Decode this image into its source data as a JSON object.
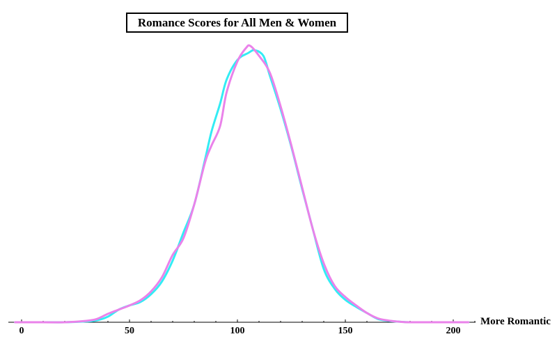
{
  "chart_data": {
    "type": "line",
    "title": "Romance Scores for All Men & Women",
    "xlabel": "More Romantic",
    "ylabel": "",
    "xlim": [
      -3,
      210
    ],
    "ylim": [
      0,
      1
    ],
    "xticks": [
      0,
      50,
      100,
      150,
      200
    ],
    "xtick_labels": [
      "0",
      "50",
      "100",
      "150",
      "200"
    ],
    "grid": false,
    "legend": "none",
    "series": [
      {
        "color": "#33ecf4",
        "x": [
          -3,
          0,
          10,
          20,
          30,
          35,
          40,
          45,
          50,
          55,
          60,
          65,
          70,
          75,
          80,
          85,
          88,
          92,
          95,
          100,
          105,
          108,
          112,
          115,
          120,
          125,
          130,
          135,
          140,
          145,
          150,
          155,
          160,
          165,
          170,
          175,
          180,
          190,
          200,
          207
        ],
        "y": [
          0.0,
          0.0,
          0.0,
          0.0,
          0.003,
          0.007,
          0.02,
          0.045,
          0.06,
          0.072,
          0.1,
          0.145,
          0.22,
          0.32,
          0.42,
          0.58,
          0.68,
          0.78,
          0.865,
          0.935,
          0.96,
          0.97,
          0.95,
          0.88,
          0.76,
          0.625,
          0.475,
          0.33,
          0.19,
          0.12,
          0.08,
          0.055,
          0.033,
          0.012,
          0.005,
          0.002,
          0.0,
          0.0,
          0.0,
          0.0
        ]
      },
      {
        "color": "#ea82ea",
        "x": [
          -3,
          0,
          10,
          20,
          30,
          35,
          40,
          45,
          50,
          55,
          60,
          65,
          70,
          75,
          80,
          85,
          88,
          92,
          95,
          100,
          104,
          106,
          110,
          115,
          120,
          125,
          130,
          135,
          140,
          145,
          150,
          155,
          160,
          165,
          170,
          175,
          180,
          190,
          200,
          207
        ],
        "y": [
          0.0,
          0.0,
          0.0,
          0.0,
          0.005,
          0.012,
          0.03,
          0.045,
          0.06,
          0.078,
          0.11,
          0.16,
          0.24,
          0.3,
          0.42,
          0.57,
          0.63,
          0.7,
          0.82,
          0.93,
          0.978,
          0.985,
          0.95,
          0.89,
          0.77,
          0.63,
          0.48,
          0.33,
          0.21,
          0.13,
          0.09,
          0.06,
          0.033,
          0.014,
          0.006,
          0.002,
          0.0,
          0.0,
          0.0,
          0.0
        ]
      }
    ]
  }
}
